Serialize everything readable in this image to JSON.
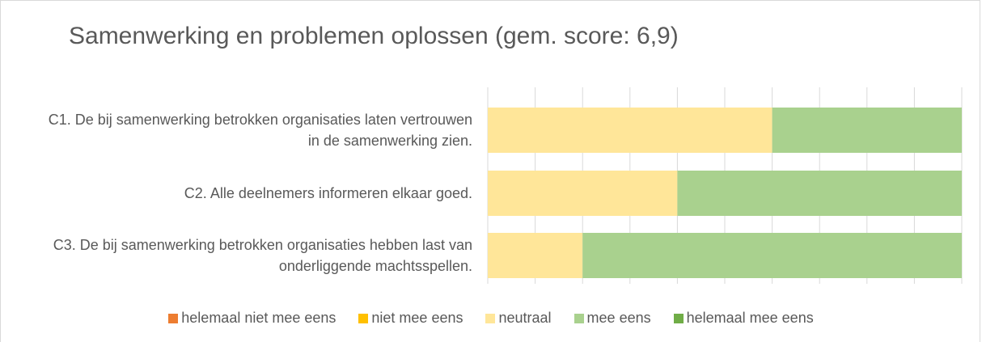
{
  "chart_data": {
    "type": "stacked-bar-horizontal",
    "title": "Samenwerking en problemen oplossen (gem. score: 6,9)",
    "categories": [
      "C1. De bij samenwerking betrokken organisaties laten vertrouwen in de samenwerking zien.",
      "C2. Alle deelnemers informeren elkaar goed.",
      "C3. De bij samenwerking betrokken organisaties hebben last van onderliggende machtsspellen."
    ],
    "series": [
      {
        "name": "helemaal niet mee eens",
        "color": "#ed7d31",
        "values": [
          0,
          0,
          0
        ]
      },
      {
        "name": "niet mee eens",
        "color": "#ffc000",
        "values": [
          0,
          0,
          0
        ]
      },
      {
        "name": "neutraal",
        "color": "#ffe699",
        "values": [
          60,
          40,
          20
        ]
      },
      {
        "name": "mee eens",
        "color": "#a9d18e",
        "values": [
          40,
          60,
          80
        ]
      },
      {
        "name": "helemaal mee eens",
        "color": "#70ad47",
        "values": [
          0,
          0,
          0
        ]
      }
    ],
    "xlim": [
      0,
      100
    ],
    "xticks": [
      0,
      10,
      20,
      30,
      40,
      50,
      60,
      70,
      80,
      90,
      100
    ],
    "grid": true,
    "legend": "bottom"
  }
}
